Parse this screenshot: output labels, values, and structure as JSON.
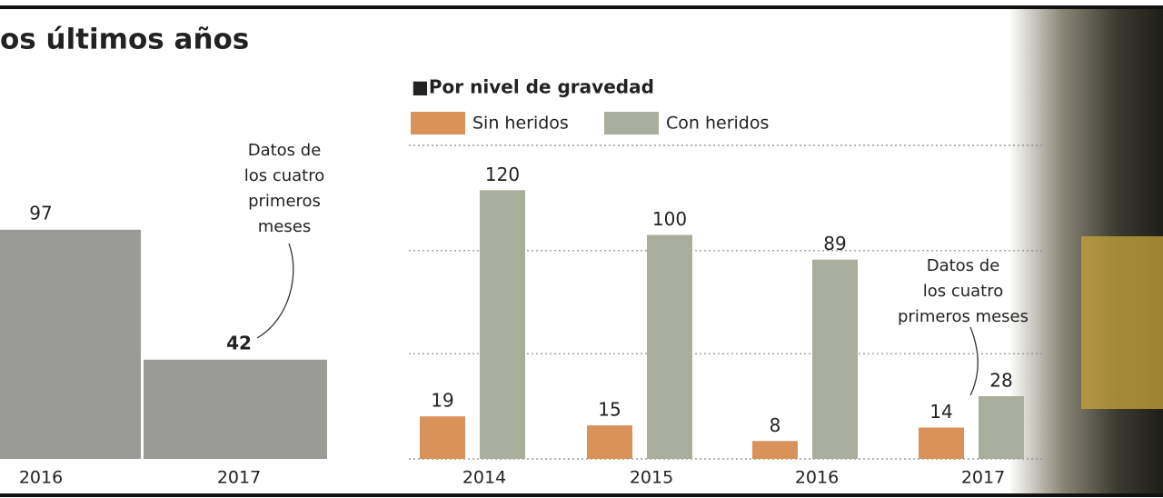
{
  "title": "os últimos años",
  "chart_data": [
    {
      "type": "bar",
      "categories": [
        "2016",
        "2017"
      ],
      "values": [
        97,
        42
      ],
      "color": "#9a9a96",
      "ylim": [
        0,
        120
      ],
      "annotation": [
        "Datos de",
        "los cuatro",
        "primeros",
        "meses"
      ]
    },
    {
      "type": "grouped-bar",
      "title": "■Por nivel de gravedad",
      "categories": [
        "2014",
        "2015",
        "2016",
        "2017"
      ],
      "series": [
        {
          "name": "Sin heridos",
          "color": "#d9925a",
          "values": [
            19,
            15,
            8,
            14
          ]
        },
        {
          "name": "Con heridos",
          "color": "#a9ad9c",
          "values": [
            120,
            100,
            89,
            28
          ]
        }
      ],
      "ylim": [
        0,
        140
      ],
      "yticks": [
        0,
        47,
        93,
        140
      ],
      "grid": true,
      "annotation": [
        "Datos de",
        "los cuatro",
        "primeros meses"
      ]
    }
  ]
}
